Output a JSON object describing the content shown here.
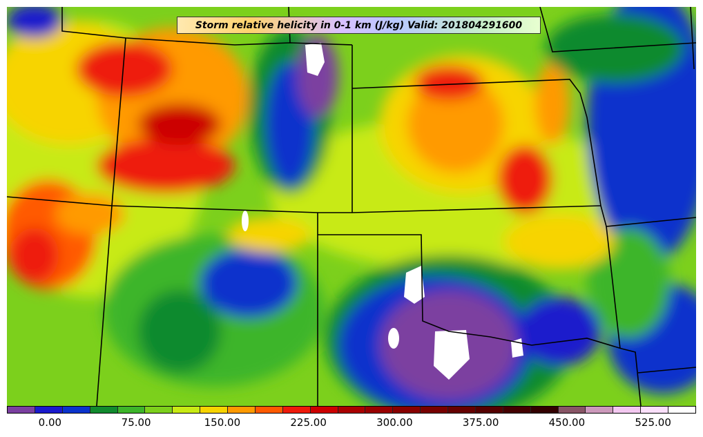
{
  "title": "Storm relative helicity in 0-1 km (J/kg) Valid: 201804291600",
  "colorbar": {
    "colors": [
      "#7b3fa0",
      "#1a1acc",
      "#0a33cc",
      "#118a2e",
      "#3db52a",
      "#7cd01c",
      "#c8ea14",
      "#f7d400",
      "#ff9a00",
      "#ff5a00",
      "#ee1a0a",
      "#cc0000",
      "#aa0000",
      "#990000",
      "#880000",
      "#770000",
      "#660000",
      "#550000",
      "#440000",
      "#330000",
      "#885566",
      "#cc99bb",
      "#f3c8f0",
      "#fbe0fb",
      "#ffffff"
    ],
    "tick_labels": [
      "0.00",
      "75.00",
      "150.00",
      "225.00",
      "300.00",
      "375.00",
      "450.00",
      "525.00"
    ],
    "tick_values": [
      0,
      75,
      150,
      225,
      300,
      375,
      450,
      525
    ],
    "range": [
      -37.5,
      562.5
    ]
  }
}
